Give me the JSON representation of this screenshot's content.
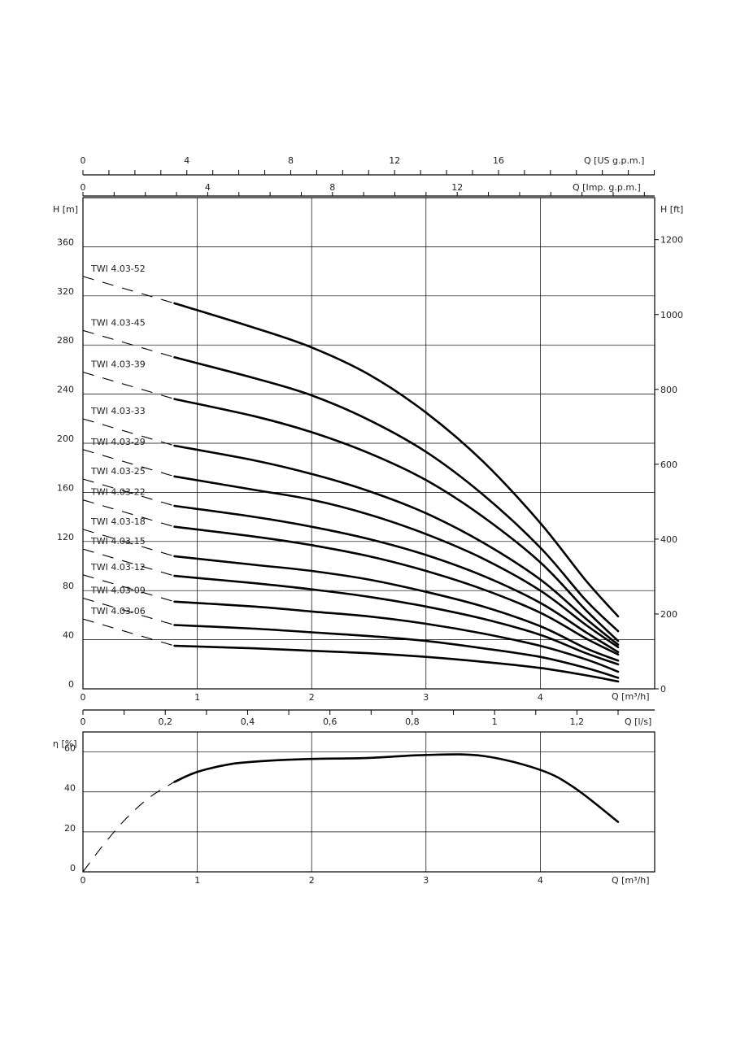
{
  "chart_data": [
    {
      "type": "line",
      "xlabel": "Q [m³/h]",
      "ylabel": "H [m]",
      "ylabel_right": "H [ft]",
      "xlim": [
        0,
        5
      ],
      "ylim": [
        0,
        400
      ],
      "x_ticks": [
        "0",
        "1",
        "2",
        "3",
        "4"
      ],
      "y_ticks": [
        "0",
        "40",
        "80",
        "120",
        "160",
        "200",
        "240",
        "280",
        "320",
        "360"
      ],
      "y2_ticks": [
        "0",
        "200",
        "400",
        "600",
        "800",
        "1000",
        "1200"
      ],
      "y2_values": [
        0,
        200,
        400,
        600,
        800,
        1000,
        1200
      ],
      "top_axis_us": {
        "label": "Q [US g.p.m.]",
        "ticks": [
          "0",
          "4",
          "8",
          "12",
          "16"
        ],
        "values": [
          0,
          4,
          8,
          12,
          16
        ],
        "max": 22
      },
      "top_axis_imp": {
        "label": "Q [Imp. g.p.m.]",
        "ticks": [
          "0",
          "4",
          "8",
          "12"
        ],
        "values": [
          0,
          4,
          8,
          12
        ],
        "max": 18.3
      },
      "grid": true,
      "series": [
        {
          "name": "TWI 4.03-52",
          "x": [
            0.8,
            1.5,
            2.0,
            2.5,
            3.0,
            3.5,
            4.0,
            4.4,
            4.68
          ],
          "y": [
            314,
            294,
            278,
            256,
            225,
            185,
            135,
            88,
            59
          ]
        },
        {
          "name": "TWI 4.03-45",
          "x": [
            0.8,
            1.5,
            2.0,
            2.5,
            3.0,
            3.5,
            4.0,
            4.4,
            4.68
          ],
          "y": [
            270,
            253,
            239,
            219,
            193,
            158,
            115,
            72,
            47
          ]
        },
        {
          "name": "TWI 4.03-39",
          "x": [
            0.8,
            1.5,
            2.0,
            2.5,
            3.0,
            3.5,
            4.0,
            4.4,
            4.68
          ],
          "y": [
            236,
            222,
            209,
            192,
            170,
            140,
            103,
            64,
            39
          ]
        },
        {
          "name": "TWI 4.03-33",
          "x": [
            0.8,
            1.5,
            2.0,
            2.5,
            3.0,
            3.5,
            4.0,
            4.4,
            4.68
          ],
          "y": [
            198,
            186,
            175,
            161,
            143,
            119,
            89,
            57,
            36
          ]
        },
        {
          "name": "TWI 4.03-29",
          "x": [
            0.8,
            1.5,
            2.0,
            2.5,
            3.0,
            3.5,
            4.0,
            4.4,
            4.68
          ],
          "y": [
            173,
            162,
            154,
            142,
            126,
            106,
            80,
            52,
            34
          ]
        },
        {
          "name": "TWI 4.03-25",
          "x": [
            0.8,
            1.5,
            2.0,
            2.5,
            3.0,
            3.5,
            4.0,
            4.4,
            4.68
          ],
          "y": [
            149,
            140,
            132,
            122,
            109,
            92,
            70,
            46,
            30
          ]
        },
        {
          "name": "TWI 4.03-22",
          "x": [
            0.8,
            1.5,
            2.0,
            2.5,
            3.0,
            3.5,
            4.0,
            4.4,
            4.68
          ],
          "y": [
            132,
            124,
            117,
            108,
            96,
            81,
            62,
            41,
            28
          ]
        },
        {
          "name": "TWI 4.03-18",
          "x": [
            0.8,
            1.5,
            2.0,
            2.5,
            3.0,
            3.5,
            4.0,
            4.4,
            4.68
          ],
          "y": [
            108,
            101,
            96,
            89,
            79,
            67,
            51,
            33,
            23
          ]
        },
        {
          "name": "TWI 4.03-15",
          "x": [
            0.8,
            1.5,
            2.0,
            2.5,
            3.0,
            3.5,
            4.0,
            4.4,
            4.68
          ],
          "y": [
            92,
            86,
            81,
            75,
            67,
            57,
            44,
            29,
            20
          ]
        },
        {
          "name": "TWI 4.03-12",
          "x": [
            0.8,
            1.5,
            2.0,
            2.5,
            3.0,
            3.5,
            4.0,
            4.4,
            4.68
          ],
          "y": [
            71,
            67,
            63,
            59,
            53,
            45,
            35,
            24,
            14
          ]
        },
        {
          "name": "TWI 4.03-09",
          "x": [
            0.8,
            1.5,
            2.0,
            2.5,
            3.0,
            3.5,
            4.0,
            4.4,
            4.68
          ],
          "y": [
            52,
            49,
            46,
            43,
            39,
            33,
            26,
            17,
            9
          ]
        },
        {
          "name": "TWI 4.03-06",
          "x": [
            0.8,
            1.5,
            2.0,
            2.5,
            3.0,
            3.5,
            4.0,
            4.4,
            4.68
          ],
          "y": [
            35,
            33,
            31,
            29,
            26,
            22,
            17,
            11,
            6
          ]
        }
      ]
    },
    {
      "type": "line",
      "xlabel": "Q [m³/h]",
      "ylabel": "η [%]",
      "xlim": [
        0,
        5
      ],
      "ylim": [
        0,
        70
      ],
      "x_ticks": [
        "0",
        "1",
        "2",
        "3",
        "4"
      ],
      "y_ticks": [
        "0",
        "20",
        "40",
        "60"
      ],
      "top_axis_ls": {
        "label": "Q [l/s]",
        "ticks": [
          "0",
          "0,2",
          "0,4",
          "0,6",
          "0,8",
          "1",
          "1,2"
        ],
        "values": [
          0,
          0.2,
          0.4,
          0.6,
          0.8,
          1.0,
          1.2
        ]
      },
      "grid": true,
      "series": [
        {
          "name": "",
          "x": [
            0.8,
            1.0,
            1.3,
            1.6,
            2.0,
            2.5,
            3.0,
            3.5,
            4.0,
            4.3,
            4.68
          ],
          "y": [
            45,
            50,
            54,
            55.5,
            56.5,
            57,
            58.5,
            58,
            51,
            42,
            25
          ]
        },
        {
          "name": "",
          "dashed": true,
          "x": [
            0,
            0.2,
            0.4,
            0.6,
            0.8
          ],
          "y": [
            0,
            15,
            28,
            38,
            45
          ]
        }
      ]
    }
  ]
}
